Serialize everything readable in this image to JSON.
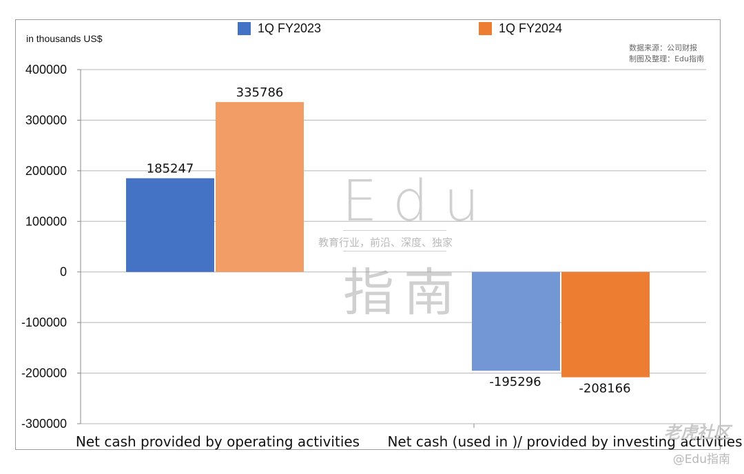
{
  "chart_data": {
    "type": "bar",
    "unit_label": "in thousands US$",
    "categories": [
      "Net cash provided by operating activities",
      "Net cash (used in )/ provided by investing activities"
    ],
    "series": [
      {
        "name": "1Q FY2023",
        "values": [
          185247,
          -195296
        ],
        "colors": [
          "#4472c4",
          "#7396d4"
        ]
      },
      {
        "name": "1Q FY2024",
        "values": [
          335786,
          -208166
        ],
        "colors": [
          "#f29d65",
          "#ed7d31"
        ]
      }
    ],
    "legend_colors": [
      "#4472c4",
      "#ed7d31"
    ],
    "ylim": [
      -300000,
      400000
    ],
    "yticks": [
      400000,
      300000,
      200000,
      100000,
      0,
      -100000,
      -200000,
      -300000
    ],
    "ytick_labels": [
      "400000",
      "300000",
      "200000",
      "100000",
      "0",
      "-100000",
      "-200000",
      "-300000"
    ],
    "data_labels": [
      [
        "185247",
        "-195296"
      ],
      [
        "335786",
        "-208166"
      ]
    ],
    "grid": true,
    "legend_position": "top"
  },
  "source_lines": [
    "数据来源：公司财报",
    "制图及整理：Edu指南"
  ],
  "watermark": {
    "latin": "Edu",
    "subtitle": "教育行业，前沿、深度、独家",
    "cjk": "指南"
  },
  "corner": {
    "logo": "老虎社区",
    "handle": "@Edu指南"
  }
}
